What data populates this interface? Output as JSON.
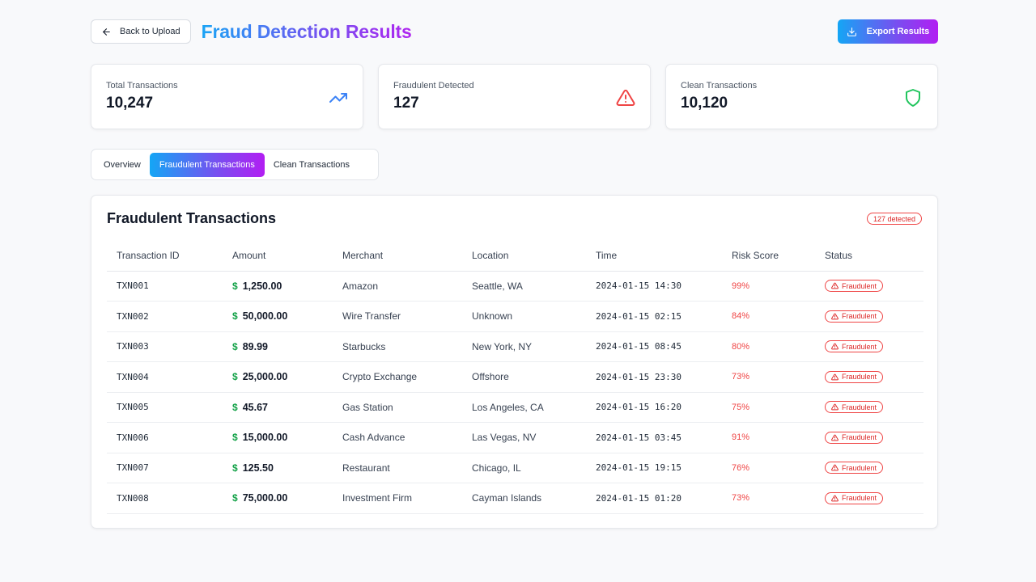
{
  "header": {
    "back_label": "Back to Upload",
    "title": "Fraud Detection Results",
    "export_label": "Export Results"
  },
  "stats": [
    {
      "label": "Total Transactions",
      "value": "10,247",
      "icon": "trending-up-icon",
      "color": "#3b82f6"
    },
    {
      "label": "Fraudulent Detected",
      "value": "127",
      "icon": "alert-triangle-icon",
      "color": "#ef4444"
    },
    {
      "label": "Clean Transactions",
      "value": "10,120",
      "icon": "shield-icon",
      "color": "#22c55e"
    }
  ],
  "tabs": [
    {
      "label": "Overview"
    },
    {
      "label": "Fraudulent Transactions"
    },
    {
      "label": "Clean Transactions"
    }
  ],
  "active_tab": "Fraudulent Transactions",
  "panel": {
    "title": "Fraudulent Transactions",
    "badge": "127 detected",
    "columns": [
      "Transaction ID",
      "Amount",
      "Merchant",
      "Location",
      "Time",
      "Risk Score",
      "Status"
    ],
    "rows": [
      {
        "id": "TXN001",
        "currency": "$",
        "amount": "1,250.00",
        "merchant": "Amazon",
        "location": "Seattle, WA",
        "time": "2024-01-15 14:30",
        "risk": "99%",
        "status": "Fraudulent"
      },
      {
        "id": "TXN002",
        "currency": "$",
        "amount": "50,000.00",
        "merchant": "Wire Transfer",
        "location": "Unknown",
        "time": "2024-01-15 02:15",
        "risk": "84%",
        "status": "Fraudulent"
      },
      {
        "id": "TXN003",
        "currency": "$",
        "amount": "89.99",
        "merchant": "Starbucks",
        "location": "New York, NY",
        "time": "2024-01-15 08:45",
        "risk": "80%",
        "status": "Fraudulent"
      },
      {
        "id": "TXN004",
        "currency": "$",
        "amount": "25,000.00",
        "merchant": "Crypto Exchange",
        "location": "Offshore",
        "time": "2024-01-15 23:30",
        "risk": "73%",
        "status": "Fraudulent"
      },
      {
        "id": "TXN005",
        "currency": "$",
        "amount": "45.67",
        "merchant": "Gas Station",
        "location": "Los Angeles, CA",
        "time": "2024-01-15 16:20",
        "risk": "75%",
        "status": "Fraudulent"
      },
      {
        "id": "TXN006",
        "currency": "$",
        "amount": "15,000.00",
        "merchant": "Cash Advance",
        "location": "Las Vegas, NV",
        "time": "2024-01-15 03:45",
        "risk": "91%",
        "status": "Fraudulent"
      },
      {
        "id": "TXN007",
        "currency": "$",
        "amount": "125.50",
        "merchant": "Restaurant",
        "location": "Chicago, IL",
        "time": "2024-01-15 19:15",
        "risk": "76%",
        "status": "Fraudulent"
      },
      {
        "id": "TXN008",
        "currency": "$",
        "amount": "75,000.00",
        "merchant": "Investment Firm",
        "location": "Cayman Islands",
        "time": "2024-01-15 01:20",
        "risk": "73%",
        "status": "Fraudulent"
      }
    ]
  }
}
